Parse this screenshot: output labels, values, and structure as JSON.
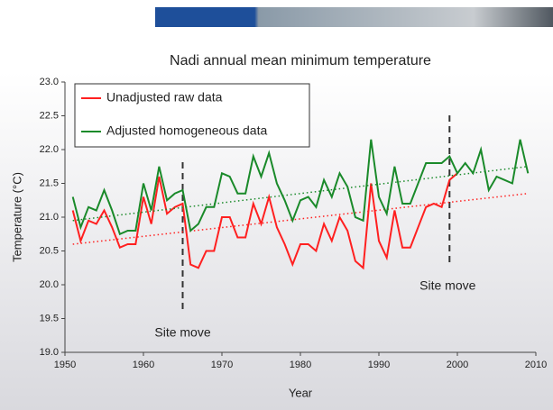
{
  "chart_data": {
    "type": "line",
    "title": "Nadi annual mean minimum temperature",
    "x_label": "Year",
    "y_label": "Temperature (°C)",
    "x": [
      1951,
      1952,
      1953,
      1954,
      1955,
      1956,
      1957,
      1958,
      1959,
      1960,
      1961,
      1962,
      1963,
      1964,
      1965,
      1966,
      1967,
      1968,
      1969,
      1970,
      1971,
      1972,
      1973,
      1974,
      1975,
      1976,
      1977,
      1978,
      1979,
      1980,
      1981,
      1982,
      1983,
      1984,
      1985,
      1986,
      1987,
      1988,
      1989,
      1990,
      1991,
      1992,
      1993,
      1994,
      1995,
      1996,
      1997,
      1998,
      1999,
      2000,
      2001,
      2002,
      2003,
      2004,
      2005,
      2006,
      2007,
      2008,
      2009
    ],
    "series": [
      {
        "name": "Unadjusted raw data",
        "color": "#ff2020",
        "values": [
          21.1,
          20.65,
          20.95,
          20.9,
          21.1,
          20.85,
          20.55,
          20.6,
          20.6,
          21.3,
          20.9,
          21.6,
          21.05,
          21.15,
          21.2,
          20.3,
          20.25,
          20.5,
          20.5,
          21.0,
          21.0,
          20.7,
          20.7,
          21.2,
          20.9,
          21.3,
          20.85,
          20.6,
          20.3,
          20.6,
          20.6,
          20.5,
          20.9,
          20.65,
          21.0,
          20.8,
          20.35,
          20.25,
          21.5,
          20.65,
          20.4,
          21.1,
          20.55,
          20.55,
          20.85,
          21.15,
          21.2,
          21.15,
          21.55,
          21.65,
          null,
          null,
          null,
          null,
          null,
          null,
          null,
          null,
          null
        ],
        "trend": [
          20.6,
          21.35
        ]
      },
      {
        "name": "Adjusted homogeneous data",
        "color": "#1a8a2a",
        "values": [
          21.3,
          20.85,
          21.15,
          21.1,
          21.4,
          21.1,
          20.75,
          20.8,
          20.8,
          21.5,
          21.1,
          21.75,
          21.25,
          21.35,
          21.4,
          20.8,
          20.9,
          21.15,
          21.15,
          21.65,
          21.6,
          21.35,
          21.35,
          21.9,
          21.6,
          21.95,
          21.5,
          21.25,
          20.95,
          21.25,
          21.3,
          21.15,
          21.55,
          21.3,
          21.65,
          21.45,
          21.0,
          20.95,
          22.15,
          21.3,
          21.05,
          21.75,
          21.2,
          21.2,
          21.5,
          21.8,
          21.8,
          21.8,
          21.9,
          21.65,
          21.8,
          21.65,
          22.0,
          21.4,
          21.6,
          21.55,
          21.5,
          22.15,
          21.65
        ],
        "trend": [
          20.95,
          21.75
        ]
      }
    ],
    "annotations": [
      {
        "x": 1965,
        "label": "Site move"
      },
      {
        "x": 1999,
        "label": "Site move"
      }
    ],
    "xlim": [
      1950,
      2010
    ],
    "xticks": [
      1950,
      1960,
      1970,
      1980,
      1990,
      2000,
      2010
    ],
    "ylim": [
      19.0,
      23.0
    ],
    "yticks": [
      {
        "value": 19,
        "label": "19.0"
      },
      {
        "value": 19.5,
        "label": "19.5"
      },
      {
        "value": 20,
        "label": "20.0"
      },
      {
        "value": 20.5,
        "label": "20.5"
      },
      {
        "value": 21,
        "label": "21.0"
      },
      {
        "value": 21.5,
        "label": "21.5"
      },
      {
        "value": 22,
        "label": "22.0"
      },
      {
        "value": 22.5,
        "label": "22.5"
      },
      {
        "value": 23,
        "label": "23.0"
      }
    ],
    "legend": "upper left"
  }
}
